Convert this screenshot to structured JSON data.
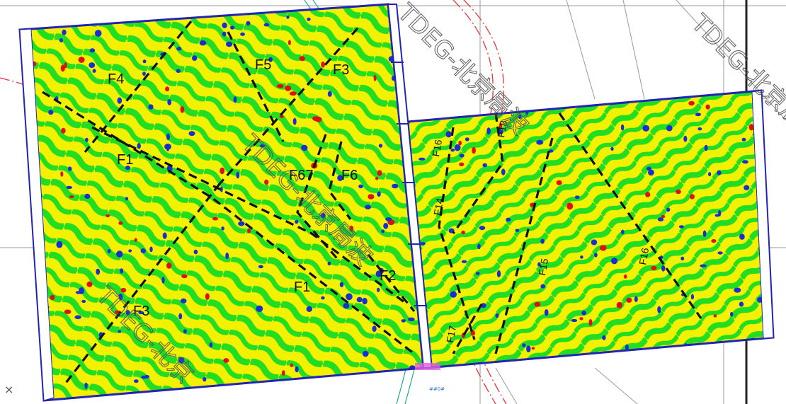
{
  "map": {
    "colors": {
      "background_field": "#f2f200",
      "pattern_green": "#22dd22",
      "anomaly_blue": "#1a2fd0",
      "anomaly_red": "#e01010",
      "survey_border": "#2323b5",
      "fault_line": "#111111",
      "grid_line": "#9a9a9a",
      "pipeline_red": "#d44",
      "pipeline_green": "#2a8"
    },
    "faults_left": [
      {
        "id": "F4",
        "label": "F4"
      },
      {
        "id": "F5",
        "label": "F5"
      },
      {
        "id": "F3-top",
        "label": "F3"
      },
      {
        "id": "F1-upper",
        "label": "F1"
      },
      {
        "id": "F67",
        "label": "F67"
      },
      {
        "id": "F6",
        "label": "F6"
      },
      {
        "id": "F2",
        "label": "F2"
      },
      {
        "id": "F1-lower",
        "label": "F1"
      },
      {
        "id": "F3-lower",
        "label": "F3"
      }
    ],
    "faults_right": [
      {
        "id": "F16",
        "label": "F16"
      },
      {
        "id": "F18",
        "label": "F18"
      },
      {
        "id": "F14",
        "label": "F14"
      },
      {
        "id": "F15",
        "label": "F15"
      },
      {
        "id": "F16b",
        "label": "F16"
      },
      {
        "id": "F17",
        "label": "F17"
      }
    ],
    "watermarks": [
      "TDEG-北京局波",
      "TDEG-北京局波",
      "TDEG-北京局波",
      "TDEG-北京局波",
      "TDEG-北京"
    ],
    "corner_marker": "×",
    "pipe_tag": "##0#"
  }
}
